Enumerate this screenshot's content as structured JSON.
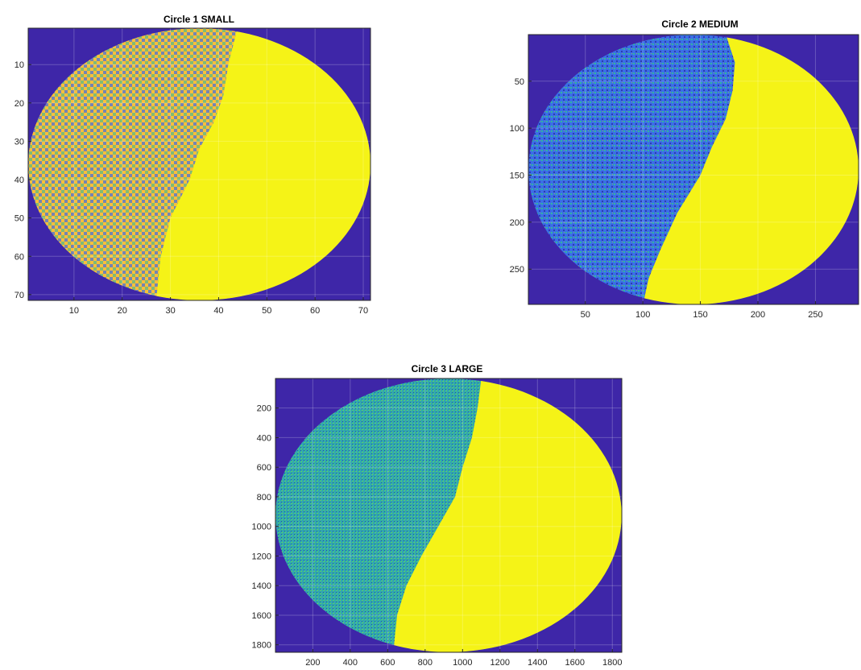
{
  "colors": {
    "background": "#3e26a8",
    "blue": "#3b6ee6",
    "teal": "#2fb8a0",
    "green": "#7fc35a",
    "orange": "#f9bf3a",
    "yellow": "#f5f317",
    "dark_blue": "#2c3bb4"
  },
  "chart_data": [
    {
      "type": "heatmap",
      "title": "Circle 1 SMALL",
      "xlabel": "",
      "ylabel": "",
      "xlim": [
        0.5,
        71.5
      ],
      "ylim": [
        0.5,
        71.5
      ],
      "y_reversed": true,
      "grid": true,
      "xticks": [
        10,
        20,
        30,
        40,
        50,
        60,
        70
      ],
      "xtick_labels": [
        "10",
        "20",
        "30",
        "40",
        "50",
        "60",
        "70"
      ],
      "yticks": [
        10,
        20,
        30,
        40,
        50,
        60,
        70
      ],
      "ytick_labels": [
        "10",
        "20",
        "30",
        "40",
        "50",
        "60",
        "70"
      ],
      "circle": {
        "cx": 36,
        "cy": 36,
        "r": 35.5
      },
      "boundary": [
        [
          44,
          0
        ],
        [
          42,
          10
        ],
        [
          41,
          18
        ],
        [
          39,
          25
        ],
        [
          36,
          32
        ],
        [
          34,
          40
        ],
        [
          30,
          50
        ],
        [
          28,
          60
        ],
        [
          27,
          72
        ]
      ],
      "left_color": "orange",
      "right_color": "yellow"
    },
    {
      "type": "heatmap",
      "title": "Circle 2 MEDIUM",
      "xlabel": "",
      "ylabel": "",
      "xlim": [
        0.5,
        287.5
      ],
      "ylim": [
        0.5,
        287.5
      ],
      "y_reversed": true,
      "grid": true,
      "xticks": [
        50,
        100,
        150,
        200,
        250
      ],
      "xtick_labels": [
        "50",
        "100",
        "150",
        "200",
        "250"
      ],
      "yticks": [
        50,
        100,
        150,
        200,
        250
      ],
      "ytick_labels": [
        "50",
        "100",
        "150",
        "200",
        "250"
      ],
      "circle": {
        "cx": 144,
        "cy": 144,
        "r": 143.5
      },
      "boundary": [
        [
          172,
          0
        ],
        [
          180,
          30
        ],
        [
          178,
          60
        ],
        [
          172,
          90
        ],
        [
          160,
          120
        ],
        [
          150,
          150
        ],
        [
          130,
          190
        ],
        [
          115,
          230
        ],
        [
          105,
          260
        ],
        [
          100,
          288
        ]
      ],
      "left_color": "blue",
      "right_color": "yellow"
    },
    {
      "type": "heatmap",
      "title": "Circle 3 LARGE",
      "xlabel": "",
      "ylabel": "",
      "xlim": [
        0.5,
        1850.5
      ],
      "ylim": [
        0.5,
        1850.5
      ],
      "y_reversed": true,
      "grid": true,
      "xticks": [
        200,
        400,
        600,
        800,
        1000,
        1200,
        1400,
        1600,
        1800
      ],
      "xtick_labels": [
        "200",
        "400",
        "600",
        "800",
        "1000",
        "1200",
        "1400",
        "1600",
        "1800"
      ],
      "yticks": [
        200,
        400,
        600,
        800,
        1000,
        1200,
        1400,
        1600,
        1800
      ],
      "ytick_labels": [
        "200",
        "400",
        "600",
        "800",
        "1000",
        "1200",
        "1400",
        "1600",
        "1800"
      ],
      "circle": {
        "cx": 925,
        "cy": 925,
        "r": 924.5
      },
      "boundary": [
        [
          1100,
          0
        ],
        [
          1080,
          200
        ],
        [
          1050,
          400
        ],
        [
          1000,
          600
        ],
        [
          960,
          800
        ],
        [
          870,
          1000
        ],
        [
          780,
          1200
        ],
        [
          700,
          1400
        ],
        [
          650,
          1600
        ],
        [
          630,
          1850
        ]
      ],
      "left_color": "teal",
      "right_color": "yellow"
    }
  ]
}
